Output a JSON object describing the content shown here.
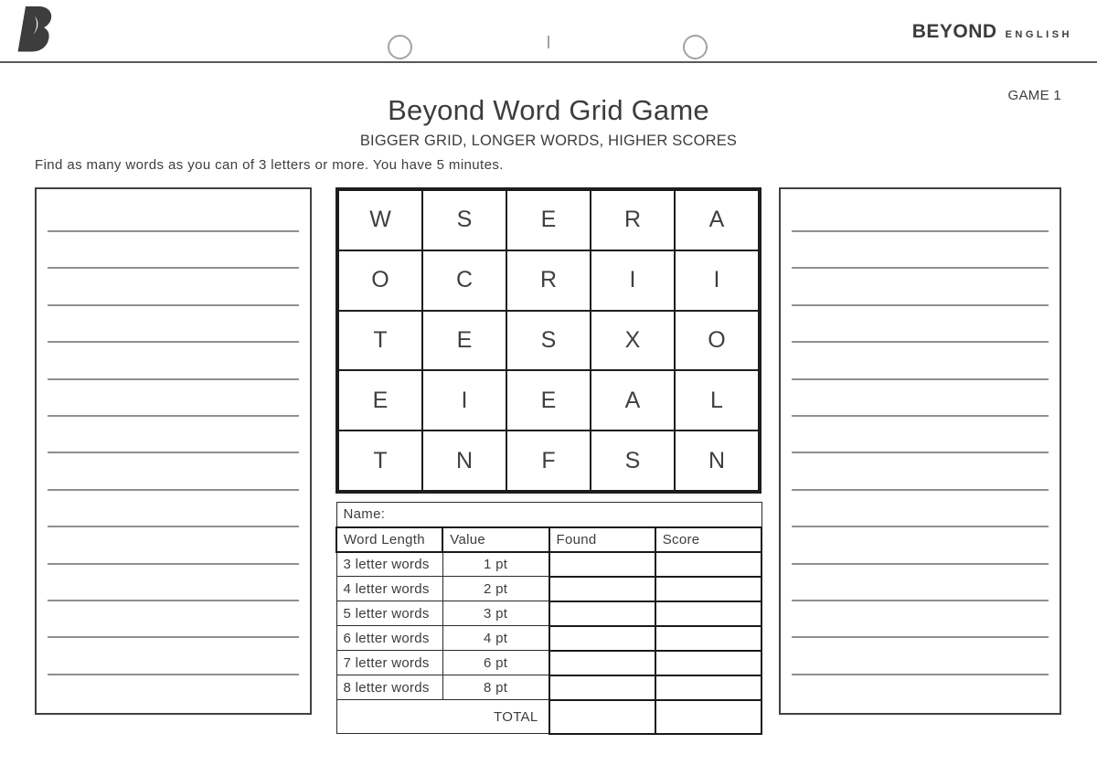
{
  "header": {
    "logo_icon": "beyond-b-logo",
    "brand_primary": "BEYOND",
    "brand_secondary": "ENGLISH"
  },
  "page": {
    "game_label": "GAME 1",
    "title": "Beyond Word Grid Game",
    "subtitle": "BIGGER GRID, LONGER WORDS, HIGHER SCORES",
    "instruction": "Find as many words as you can of 3 letters or more. You have 5 minutes."
  },
  "grid": {
    "rows": [
      [
        "W",
        "S",
        "E",
        "R",
        "A"
      ],
      [
        "O",
        "C",
        "R",
        "I",
        "I"
      ],
      [
        "T",
        "E",
        "S",
        "X",
        "O"
      ],
      [
        "E",
        "I",
        "E",
        "A",
        "L"
      ],
      [
        "T",
        "N",
        "F",
        "S",
        "N"
      ]
    ]
  },
  "score_table": {
    "name_label": "Name:",
    "headers": [
      "Word Length",
      "Value",
      "Found",
      "Score"
    ],
    "rows": [
      {
        "length": "3 letter words",
        "value": "1 pt",
        "found": "",
        "score": ""
      },
      {
        "length": "4 letter words",
        "value": "2 pt",
        "found": "",
        "score": ""
      },
      {
        "length": "5 letter words",
        "value": "3 pt",
        "found": "",
        "score": ""
      },
      {
        "length": "6 letter words",
        "value": "4 pt",
        "found": "",
        "score": ""
      },
      {
        "length": "7 letter words",
        "value": "6 pt",
        "found": "",
        "score": ""
      },
      {
        "length": "8 letter words",
        "value": "8 pt",
        "found": "",
        "score": ""
      }
    ],
    "total_label": "TOTAL",
    "total_found": "",
    "total_score": ""
  },
  "answer_panels": {
    "left_line_count": 13,
    "right_line_count": 13
  },
  "colors": {
    "text": "#3d3d3d",
    "grid_border": "#1d1d1d",
    "panel_border": "#414042",
    "answer_line": "#8f8f8f",
    "header_rule": "#58595b",
    "punch_ring": "#a3a3a3"
  }
}
